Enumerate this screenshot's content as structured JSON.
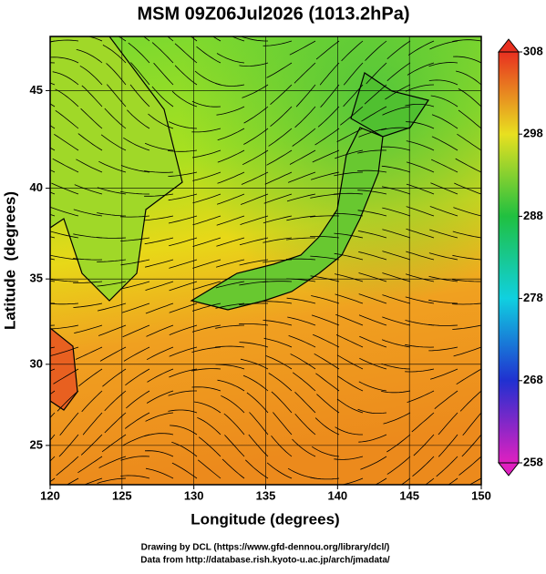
{
  "chart_data": {
    "type": "map",
    "title": "MSM 09Z06Jul2026 (1013.2hPa)",
    "x_label": "Longitude (degrees)",
    "y_label": "Latitude  (degrees)",
    "xlim": [
      120,
      150
    ],
    "xticks": [
      120,
      125,
      130,
      135,
      140,
      145,
      150
    ],
    "ylim": [
      22.5,
      47.6
    ],
    "yticks": [
      25,
      30,
      35,
      40,
      45
    ],
    "projection": "mercator",
    "grid": true,
    "colorbar": {
      "lim": [
        258,
        308
      ],
      "ticks": [
        258,
        268,
        278,
        288,
        298,
        308
      ],
      "colors": [
        "#e020c0",
        "#2030d0",
        "#10d0e0",
        "#20c040",
        "#e8e020",
        "#e83020"
      ]
    },
    "credits": [
      "Drawing by DCL (https://www.gfd-dennou.org/library/dcl/)",
      "Data from http://database.rish.kyoto-u.ac.jp/arch/jmadata/"
    ]
  }
}
